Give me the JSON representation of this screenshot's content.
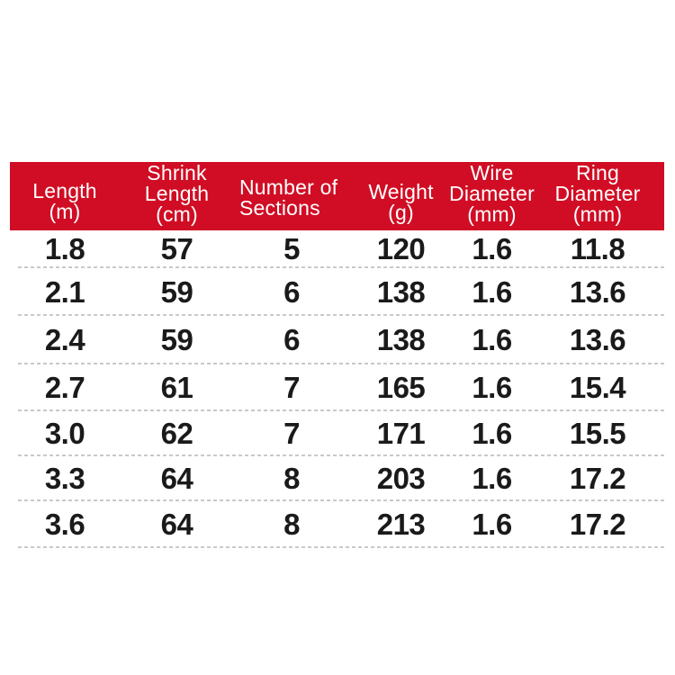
{
  "page": {
    "background": "#ffffff"
  },
  "table": {
    "header_bg": "#d00d24",
    "header_text_color": "#ffffff",
    "body_text_color": "#1a1a1a",
    "separator_color": "#c9c9c9",
    "columns": [
      {
        "id": "length-m",
        "lines": [
          "Length",
          "(m)"
        ]
      },
      {
        "id": "shrink-length-cm",
        "lines": [
          "Shrink",
          "Length",
          "(cm)"
        ]
      },
      {
        "id": "number-of-sections",
        "lines": [
          "Number of",
          "Sections"
        ]
      },
      {
        "id": "weight-g",
        "lines": [
          "Weight",
          "(g)"
        ]
      },
      {
        "id": "wire-diameter-mm",
        "lines": [
          "Wire",
          "Diameter",
          "(mm)"
        ]
      },
      {
        "id": "ring-diameter-mm",
        "lines": [
          "Ring",
          "Diameter",
          "(mm)"
        ]
      }
    ],
    "rows": [
      [
        "1.8",
        "57",
        "5",
        "120",
        "1.6",
        "11.8"
      ],
      [
        "2.1",
        "59",
        "6",
        "138",
        "1.6",
        "13.6"
      ],
      [
        "2.4",
        "59",
        "6",
        "138",
        "1.6",
        "13.6"
      ],
      [
        "2.7",
        "61",
        "7",
        "165",
        "1.6",
        "15.4"
      ],
      [
        "3.0",
        "62",
        "7",
        "171",
        "1.6",
        "15.5"
      ],
      [
        "3.3",
        "64",
        "8",
        "203",
        "1.6",
        "17.2"
      ],
      [
        "3.6",
        "64",
        "8",
        "213",
        "1.6",
        "17.2"
      ]
    ]
  }
}
